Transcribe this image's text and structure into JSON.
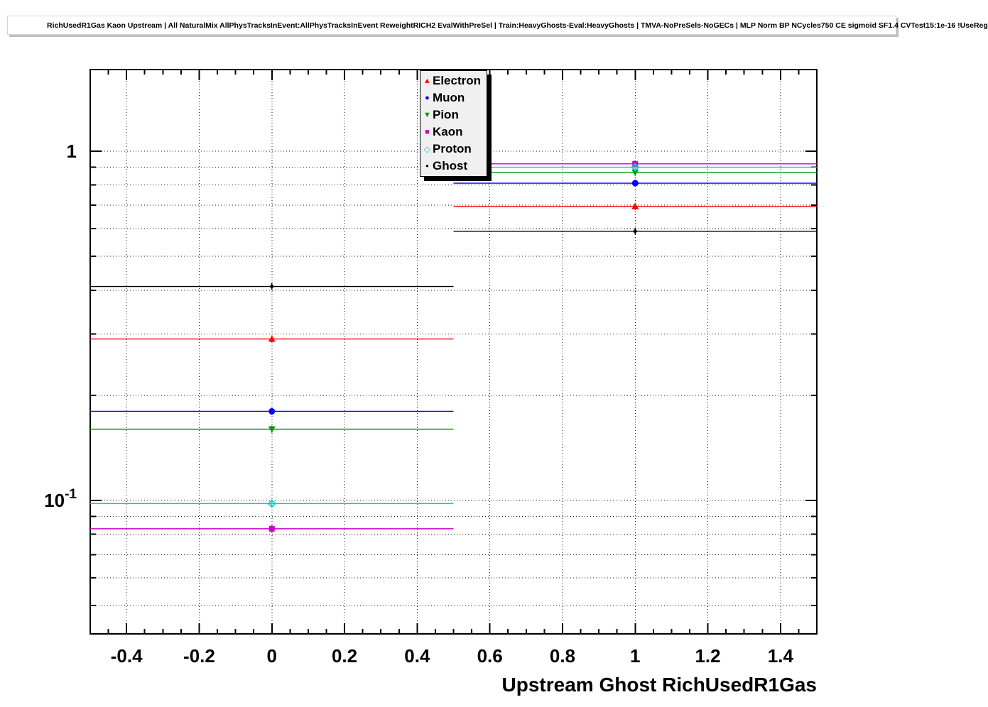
{
  "chart_data": {
    "type": "line",
    "title": "RichUsedR1Gas Kaon Upstream | All NaturalMix AllPhysTracksInEvent:AllPhysTracksInEvent ReweightRICH2 EvalWithPreSel | Train:HeavyGhosts-Eval:HeavyGhosts | TMVA-NoPreSels-NoGECs | MLP Norm BP NCycles750 CE sigmoid SF1.4 CVTest15:1e-16 !UseReg",
    "xlabel": "Upstream Ghost RichUsedR1Gas",
    "ylabel": "",
    "yscale": "log",
    "xlim": [
      -0.5,
      1.5
    ],
    "ylim": [
      0.0415,
      1.713
    ],
    "grid": "dotted-both-axes",
    "legend_position": "top-center-inside",
    "x_bins": [
      [
        -0.5,
        0.5
      ],
      [
        0.5,
        1.5
      ]
    ],
    "bin_centers": [
      0,
      1
    ],
    "series": [
      {
        "name": "Electron",
        "color": "#ff0000",
        "marker": "triangle-up",
        "values": [
          0.29,
          0.695
        ]
      },
      {
        "name": "Muon",
        "color": "#0000ff",
        "marker": "circle",
        "values": [
          0.18,
          0.81
        ]
      },
      {
        "name": "Pion",
        "color": "#009900",
        "marker": "triangle-down",
        "values": [
          0.16,
          0.87
        ]
      },
      {
        "name": "Kaon",
        "color": "#cc00cc",
        "marker": "square",
        "values": [
          0.083,
          0.92
        ]
      },
      {
        "name": "Proton",
        "color": "#00cccc",
        "marker": "diamond-open",
        "values": [
          0.098,
          0.9
        ]
      },
      {
        "name": "Ghost",
        "color": "#000000",
        "marker": "dot",
        "values": [
          0.41,
          0.59
        ]
      }
    ],
    "x_ticks": {
      "major": [
        -0.4,
        -0.2,
        0,
        0.2,
        0.4,
        0.6,
        0.8,
        1,
        1.2,
        1.4
      ],
      "labels": [
        "-0.4",
        "-0.2",
        "0",
        "0.2",
        "0.4",
        "0.6",
        "0.8",
        "1",
        "1.2",
        "1.4"
      ],
      "minor_step": 0.05
    },
    "y_ticks": {
      "major": [
        {
          "value": 1,
          "label": "1"
        },
        {
          "value": 0.1,
          "base": "10",
          "exp": "-1"
        }
      ],
      "minor": [
        0.05,
        0.06,
        0.07,
        0.08,
        0.09,
        0.2,
        0.3,
        0.4,
        0.5,
        0.6,
        0.7,
        0.8,
        0.9
      ],
      "gridlines": [
        0.05,
        0.06,
        0.07,
        0.08,
        0.09,
        0.1,
        0.2,
        0.3,
        0.4,
        0.5,
        0.6,
        0.7,
        0.8,
        0.9,
        1.0
      ]
    }
  }
}
